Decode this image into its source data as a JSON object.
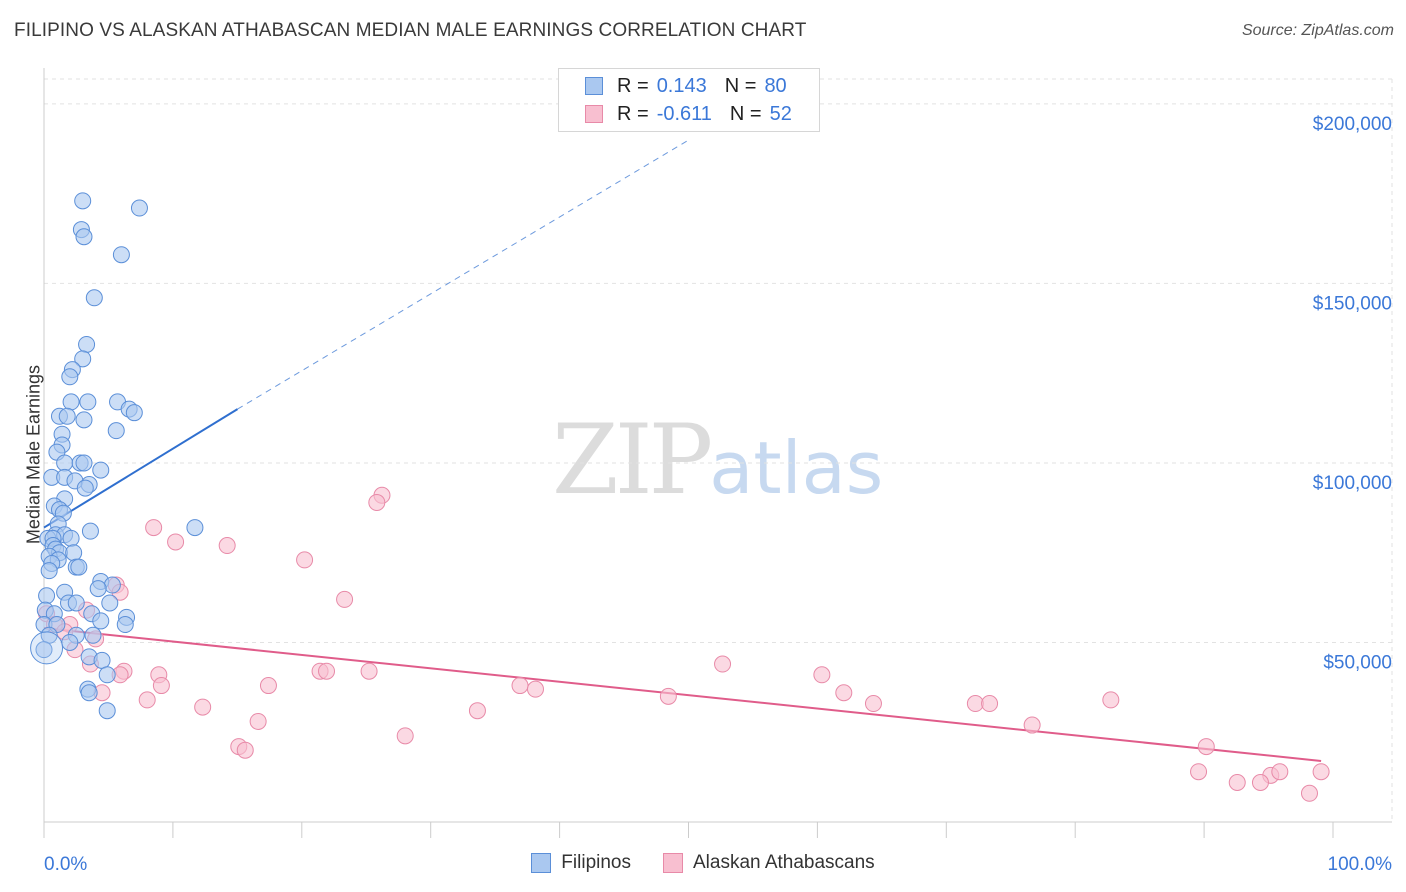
{
  "title": "FILIPINO VS ALASKAN ATHABASCAN MEDIAN MALE EARNINGS CORRELATION CHART",
  "source": "Source: ZipAtlas.com",
  "watermark": {
    "zip": "ZIP",
    "atlas": "atlas"
  },
  "legend": {
    "r_label": "R =",
    "n_label": "N =",
    "filipinos": {
      "r": "0.143",
      "n": "80"
    },
    "athabascans": {
      "r": "-0.611",
      "n": "52"
    }
  },
  "bottom_legend": {
    "filipinos": "Filipinos",
    "athabascans": "Alaskan Athabascans"
  },
  "colors": {
    "blue_fill": "#aac8f0",
    "blue_stroke": "#5b8fd8",
    "blue_line": "#2f6fcf",
    "pink_fill": "#f8bfd0",
    "pink_stroke": "#e88aa8",
    "pink_line": "#e05c8a",
    "axis_text": "#3b78d8"
  },
  "chart_data": {
    "type": "scatter",
    "title": "FILIPINO VS ALASKAN ATHABASCAN MEDIAN MALE EARNINGS CORRELATION CHART",
    "xlabel": "",
    "ylabel": "Median Male Earnings",
    "xlim": [
      0,
      100
    ],
    "ylim": [
      0,
      210000
    ],
    "x_tick_labels": [
      "0.0%",
      "100.0%"
    ],
    "y_ticks": [
      50000,
      100000,
      150000,
      200000
    ],
    "y_tick_labels": [
      "$50,000",
      "$100,000",
      "$150,000",
      "$200,000"
    ],
    "series": [
      {
        "name": "Filipinos",
        "r": 0.143,
        "n": 80,
        "trend": {
          "x0": 0,
          "y0": 82000,
          "x1": 15,
          "y1": 115000,
          "x_ext": 50,
          "y_ext": 190000
        },
        "points": [
          [
            3.0,
            173000
          ],
          [
            7.4,
            171000
          ],
          [
            2.9,
            165000
          ],
          [
            3.1,
            163000
          ],
          [
            6.0,
            158000
          ],
          [
            3.9,
            146000
          ],
          [
            3.3,
            133000
          ],
          [
            3.0,
            129000
          ],
          [
            2.2,
            126000
          ],
          [
            2.0,
            124000
          ],
          [
            3.4,
            117000
          ],
          [
            2.1,
            117000
          ],
          [
            5.7,
            117000
          ],
          [
            6.6,
            115000
          ],
          [
            7.0,
            114000
          ],
          [
            1.2,
            113000
          ],
          [
            1.8,
            113000
          ],
          [
            3.1,
            112000
          ],
          [
            5.6,
            109000
          ],
          [
            1.4,
            108000
          ],
          [
            1.4,
            105000
          ],
          [
            1.0,
            103000
          ],
          [
            1.6,
            100000
          ],
          [
            2.8,
            100000
          ],
          [
            3.1,
            100000
          ],
          [
            4.4,
            98000
          ],
          [
            0.6,
            96000
          ],
          [
            1.6,
            96000
          ],
          [
            2.4,
            95000
          ],
          [
            3.5,
            94000
          ],
          [
            3.2,
            93000
          ],
          [
            1.6,
            90000
          ],
          [
            0.8,
            88000
          ],
          [
            1.2,
            87000
          ],
          [
            1.5,
            86000
          ],
          [
            1.1,
            83000
          ],
          [
            11.7,
            82000
          ],
          [
            3.6,
            81000
          ],
          [
            0.9,
            80000
          ],
          [
            1.6,
            80000
          ],
          [
            0.3,
            79000
          ],
          [
            0.7,
            79000
          ],
          [
            2.1,
            79000
          ],
          [
            0.7,
            77000
          ],
          [
            0.9,
            76000
          ],
          [
            1.2,
            75000
          ],
          [
            2.3,
            75000
          ],
          [
            0.4,
            74000
          ],
          [
            1.1,
            73000
          ],
          [
            0.6,
            72000
          ],
          [
            2.5,
            71000
          ],
          [
            2.7,
            71000
          ],
          [
            0.4,
            70000
          ],
          [
            4.4,
            67000
          ],
          [
            5.3,
            66000
          ],
          [
            4.2,
            65000
          ],
          [
            1.6,
            64000
          ],
          [
            0.2,
            63000
          ],
          [
            1.9,
            61000
          ],
          [
            2.5,
            61000
          ],
          [
            5.1,
            61000
          ],
          [
            0.1,
            59000
          ],
          [
            0.8,
            58000
          ],
          [
            3.7,
            58000
          ],
          [
            6.4,
            57000
          ],
          [
            4.4,
            56000
          ],
          [
            0.0,
            55000
          ],
          [
            1.0,
            55000
          ],
          [
            0.4,
            52000
          ],
          [
            2.5,
            52000
          ],
          [
            3.8,
            52000
          ],
          [
            0.0,
            48000
          ],
          [
            3.5,
            46000
          ],
          [
            4.5,
            45000
          ],
          [
            4.9,
            41000
          ],
          [
            3.4,
            37000
          ],
          [
            3.5,
            36000
          ],
          [
            4.9,
            31000
          ],
          [
            2.0,
            50000
          ],
          [
            6.3,
            55000
          ]
        ]
      },
      {
        "name": "Alaskan Athabascans",
        "r": -0.611,
        "n": 52,
        "trend": {
          "x0": 0,
          "y0": 54000,
          "x1": 99,
          "y1": 17000
        },
        "points": [
          [
            26.2,
            91000
          ],
          [
            25.8,
            89000
          ],
          [
            8.5,
            82000
          ],
          [
            10.2,
            78000
          ],
          [
            14.2,
            77000
          ],
          [
            20.2,
            73000
          ],
          [
            23.3,
            62000
          ],
          [
            5.6,
            66000
          ],
          [
            5.9,
            64000
          ],
          [
            0.2,
            58000
          ],
          [
            3.3,
            59000
          ],
          [
            0.8,
            55000
          ],
          [
            2.0,
            55000
          ],
          [
            1.6,
            53000
          ],
          [
            4.0,
            51000
          ],
          [
            2.4,
            48000
          ],
          [
            3.6,
            44000
          ],
          [
            6.2,
            42000
          ],
          [
            5.9,
            41000
          ],
          [
            8.9,
            41000
          ],
          [
            9.1,
            38000
          ],
          [
            17.4,
            38000
          ],
          [
            21.4,
            42000
          ],
          [
            21.9,
            42000
          ],
          [
            25.2,
            42000
          ],
          [
            36.9,
            38000
          ],
          [
            38.1,
            37000
          ],
          [
            52.6,
            44000
          ],
          [
            62.0,
            36000
          ],
          [
            48.4,
            35000
          ],
          [
            60.3,
            41000
          ],
          [
            8.0,
            34000
          ],
          [
            12.3,
            32000
          ],
          [
            16.6,
            28000
          ],
          [
            33.6,
            31000
          ],
          [
            28.0,
            24000
          ],
          [
            15.1,
            21000
          ],
          [
            15.6,
            20000
          ],
          [
            4.5,
            36000
          ],
          [
            72.2,
            33000
          ],
          [
            73.3,
            33000
          ],
          [
            76.6,
            27000
          ],
          [
            64.3,
            33000
          ],
          [
            82.7,
            34000
          ],
          [
            90.1,
            21000
          ],
          [
            95.1,
            13000
          ],
          [
            95.8,
            14000
          ],
          [
            98.1,
            8000
          ],
          [
            99.0,
            14000
          ],
          [
            92.5,
            11000
          ],
          [
            94.3,
            11000
          ],
          [
            89.5,
            14000
          ]
        ]
      }
    ]
  }
}
